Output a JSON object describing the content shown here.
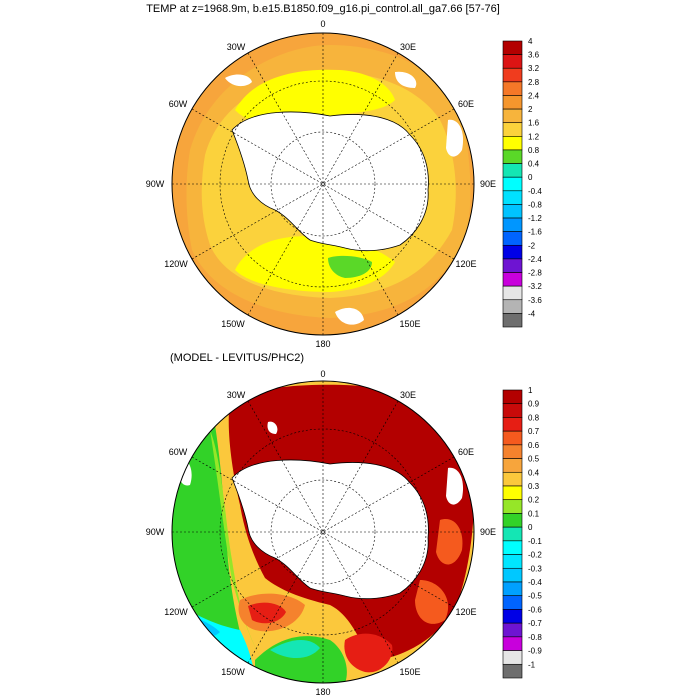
{
  "chart_data": [
    {
      "type": "heatmap",
      "projection": "south polar stereographic",
      "title": "TEMP at z=1968.9m, b.e15.B1850.f09_g16.pi_control.all_ga7.66 [57-76]",
      "lon_labels": [
        "0",
        "30E",
        "60E",
        "90E",
        "120E",
        "150E",
        "180",
        "150W",
        "120W",
        "90W",
        "60W",
        "30W"
      ],
      "colorbar": {
        "labels": [
          "4",
          "3.6",
          "3.2",
          "2.8",
          "2.4",
          "2",
          "1.6",
          "1.2",
          "0.8",
          "0.4",
          "0",
          "-0.4",
          "-0.8",
          "-1.2",
          "-1.6",
          "-2",
          "-2.4",
          "-2.8",
          "-3.2",
          "-3.6",
          "-4"
        ],
        "colors": [
          "#b30000",
          "#dc1414",
          "#f03c1e",
          "#f57828",
          "#f5962d",
          "#f7b43c",
          "#fbd23c",
          "#ffff00",
          "#5ad828",
          "#14e6b4",
          "#00ffff",
          "#00e1ff",
          "#00c3ff",
          "#0096ff",
          "#0064ff",
          "#0000e6",
          "#6e14d2",
          "#c800dc",
          "#e6e6e6",
          "#b4b4b4",
          "#6e6e6e"
        ]
      },
      "field": "bands of about 1.2-2.8 C with orange (2.0-2.8) at the outer edge and yellow (1.2-1.6) near the continent; green (0.4-0.8) patch south of 150E"
    },
    {
      "type": "heatmap",
      "projection": "south polar stereographic",
      "title": "(MODEL - LEVITUS/PHC2)",
      "lon_labels": [
        "0",
        "30E",
        "60E",
        "90E",
        "120E",
        "150E",
        "180",
        "150W",
        "120W",
        "90W",
        "60W",
        "30W"
      ],
      "colorbar": {
        "labels": [
          "1",
          "0.9",
          "0.8",
          "0.7",
          "0.6",
          "0.5",
          "0.4",
          "0.3",
          "0.2",
          "0.1",
          "0",
          "-0.1",
          "-0.2",
          "-0.3",
          "-0.4",
          "-0.5",
          "-0.6",
          "-0.7",
          "-0.8",
          "-0.9",
          "-1"
        ],
        "colors": [
          "#b30000",
          "#c80a0a",
          "#e61e14",
          "#f55a1e",
          "#f5822d",
          "#f7a53c",
          "#fbc83c",
          "#ffff00",
          "#96e628",
          "#32d228",
          "#14e6b4",
          "#00ffff",
          "#00e6ff",
          "#00c8ff",
          "#00a0ff",
          "#0064ff",
          "#0000e6",
          "#6e14d2",
          "#c800dc",
          "#e6e6e6",
          "#6e6e6e"
        ]
      },
      "field": "large positive bias (>1, dark red) over the 0-90E sector, mostly 0-0.5 in the Pacific sector, negative (-0.1 to -0.3) near 150W"
    }
  ]
}
